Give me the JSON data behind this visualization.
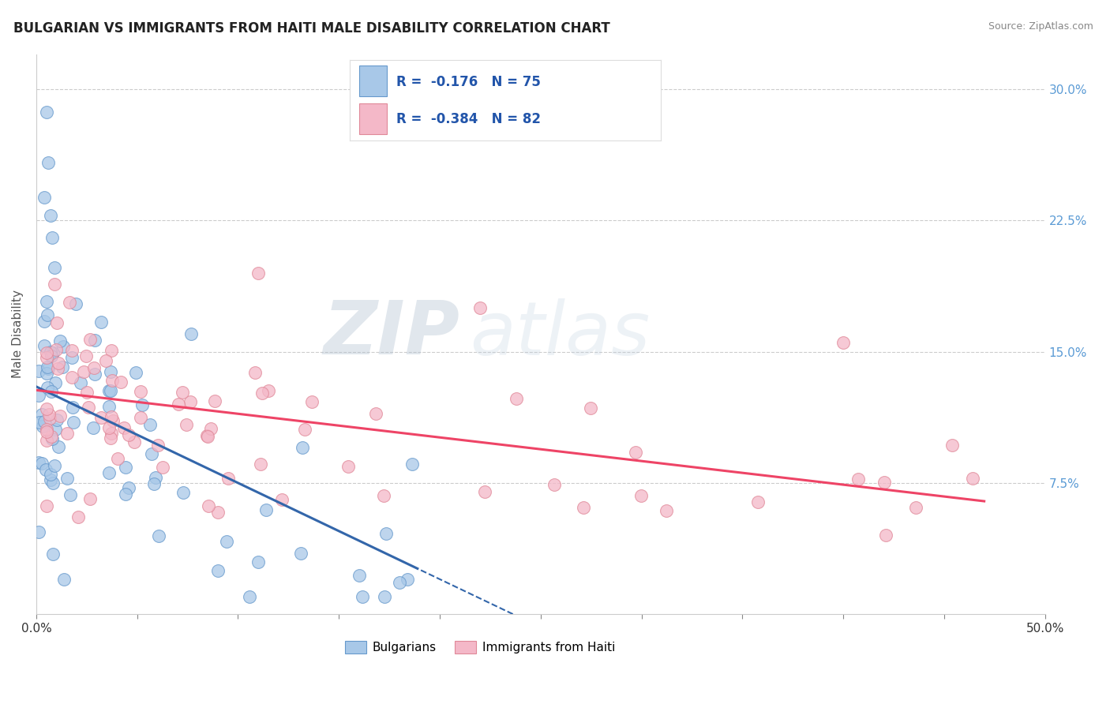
{
  "title": "BULGARIAN VS IMMIGRANTS FROM HAITI MALE DISABILITY CORRELATION CHART",
  "source": "Source: ZipAtlas.com",
  "ylabel": "Male Disability",
  "xlim": [
    0.0,
    0.5
  ],
  "ylim": [
    0.0,
    0.32
  ],
  "yticks": [
    0.0,
    0.075,
    0.15,
    0.225,
    0.3
  ],
  "ytick_labels": [
    "",
    "7.5%",
    "15.0%",
    "22.5%",
    "30.0%"
  ],
  "color_blue": "#A8C8E8",
  "color_blue_edge": "#6699CC",
  "color_pink": "#F4B8C8",
  "color_pink_edge": "#E08898",
  "color_blue_line": "#3366AA",
  "color_pink_line": "#EE4466",
  "watermark_zip": "ZIP",
  "watermark_atlas": "atlas",
  "title_fontsize": 12,
  "label_fontsize": 11,
  "tick_fontsize": 11,
  "R_blue": -0.176,
  "N_blue": 75,
  "R_pink": -0.384,
  "N_pink": 82,
  "blue_intercept": 0.13,
  "blue_slope": -0.55,
  "pink_intercept": 0.128,
  "pink_slope": -0.135
}
